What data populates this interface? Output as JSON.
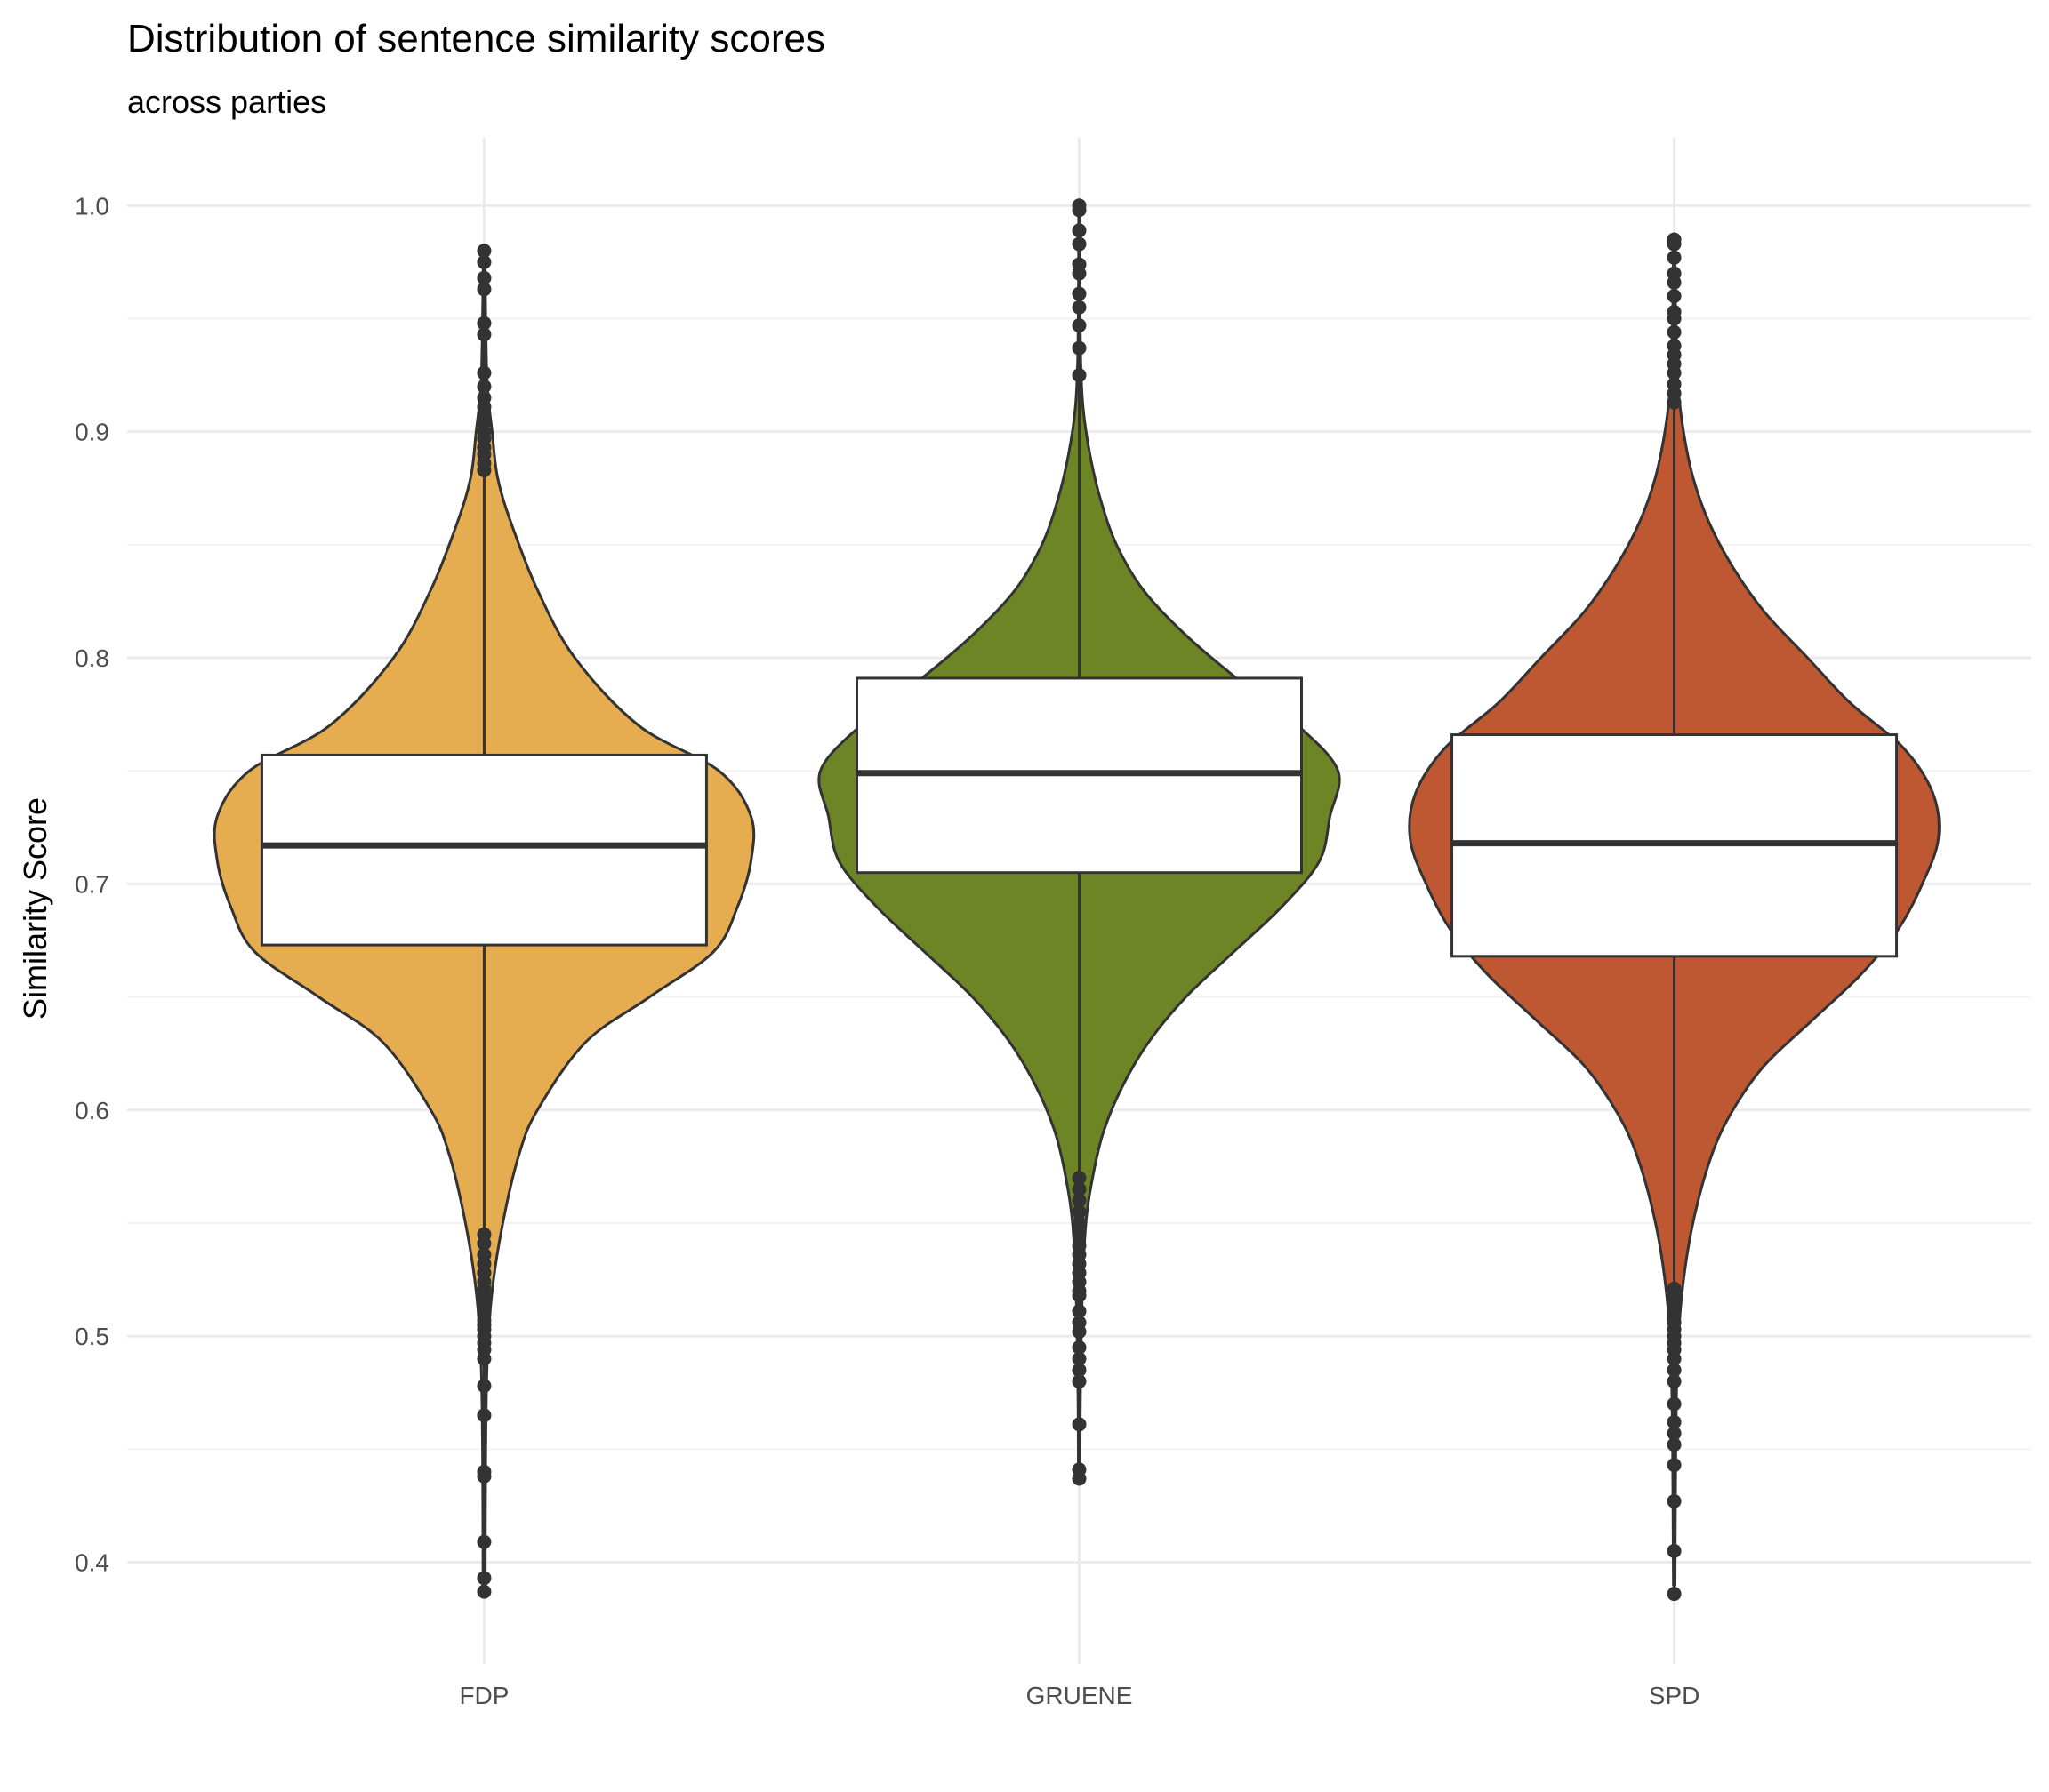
{
  "chart_data": {
    "type": "violin",
    "title": "Distribution of sentence similarity scores",
    "subtitle": "across parties",
    "xlabel": "",
    "ylabel": "Similarity Score",
    "ylim": [
      0.355,
      1.03
    ],
    "y_ticks": [
      "0.4",
      "0.5",
      "0.6",
      "0.7",
      "0.8",
      "0.9",
      "1.0"
    ],
    "grid": true,
    "legend": "none",
    "categories": [
      "FDP",
      "GRUENE",
      "SPD"
    ],
    "series": [
      {
        "category": "FDP",
        "color": "#E5AD50",
        "box": {
          "q1": 0.673,
          "median": 0.717,
          "q3": 0.757
        },
        "whisker_low": 0.387,
        "whisker_high": 0.98,
        "density": [
          [
            0.39,
            0.004
          ],
          [
            0.45,
            0.006
          ],
          [
            0.49,
            0.012
          ],
          [
            0.52,
            0.03
          ],
          [
            0.55,
            0.07
          ],
          [
            0.58,
            0.13
          ],
          [
            0.6,
            0.2
          ],
          [
            0.63,
            0.38
          ],
          [
            0.65,
            0.62
          ],
          [
            0.67,
            0.86
          ],
          [
            0.69,
            0.95
          ],
          [
            0.71,
            1.0
          ],
          [
            0.73,
            1.0
          ],
          [
            0.75,
            0.88
          ],
          [
            0.77,
            0.58
          ],
          [
            0.8,
            0.34
          ],
          [
            0.83,
            0.2
          ],
          [
            0.86,
            0.1
          ],
          [
            0.88,
            0.05
          ],
          [
            0.9,
            0.03
          ],
          [
            0.92,
            0.012
          ],
          [
            0.95,
            0.006
          ],
          [
            0.98,
            0.003
          ]
        ],
        "outliers_low": [
          0.387,
          0.393,
          0.409,
          0.438,
          0.44,
          0.465,
          0.478,
          0.49,
          0.494,
          0.497,
          0.5,
          0.503,
          0.505,
          0.507,
          0.51,
          0.512,
          0.515,
          0.518,
          0.521,
          0.524,
          0.528,
          0.532,
          0.536,
          0.541,
          0.545
        ],
        "outliers_high": [
          0.883,
          0.886,
          0.89,
          0.893,
          0.897,
          0.9,
          0.904,
          0.907,
          0.911,
          0.915,
          0.92,
          0.926,
          0.943,
          0.948,
          0.963,
          0.968,
          0.975,
          0.98
        ]
      },
      {
        "category": "GRUENE",
        "color": "#6E8526",
        "box": {
          "q1": 0.705,
          "median": 0.749,
          "q3": 0.791
        },
        "whisker_low": 0.437,
        "whisker_high": 1.0,
        "density": [
          [
            0.44,
            0.003
          ],
          [
            0.48,
            0.005
          ],
          [
            0.52,
            0.012
          ],
          [
            0.55,
            0.025
          ],
          [
            0.57,
            0.05
          ],
          [
            0.59,
            0.09
          ],
          [
            0.61,
            0.16
          ],
          [
            0.63,
            0.26
          ],
          [
            0.65,
            0.4
          ],
          [
            0.67,
            0.58
          ],
          [
            0.69,
            0.76
          ],
          [
            0.71,
            0.9
          ],
          [
            0.73,
            0.94
          ],
          [
            0.75,
            0.97
          ],
          [
            0.77,
            0.82
          ],
          [
            0.79,
            0.6
          ],
          [
            0.81,
            0.4
          ],
          [
            0.83,
            0.24
          ],
          [
            0.85,
            0.14
          ],
          [
            0.87,
            0.08
          ],
          [
            0.89,
            0.04
          ],
          [
            0.91,
            0.015
          ],
          [
            0.93,
            0.006
          ],
          [
            0.96,
            0.003
          ],
          [
            1.0,
            0.002
          ]
        ],
        "outliers_low": [
          0.437,
          0.441,
          0.461,
          0.48,
          0.485,
          0.49,
          0.495,
          0.502,
          0.506,
          0.511,
          0.518,
          0.52,
          0.524,
          0.528,
          0.532,
          0.536,
          0.54,
          0.545,
          0.55,
          0.555,
          0.56,
          0.565,
          0.57
        ],
        "outliers_high": [
          0.925,
          0.937,
          0.947,
          0.955,
          0.961,
          0.97,
          0.974,
          0.983,
          0.989,
          0.998,
          1.0
        ]
      },
      {
        "category": "SPD",
        "color": "#BE5833",
        "box": {
          "q1": 0.668,
          "median": 0.718,
          "q3": 0.766
        },
        "whisker_low": 0.386,
        "whisker_high": 0.985,
        "density": [
          [
            0.39,
            0.003
          ],
          [
            0.45,
            0.006
          ],
          [
            0.49,
            0.012
          ],
          [
            0.52,
            0.03
          ],
          [
            0.55,
            0.07
          ],
          [
            0.58,
            0.14
          ],
          [
            0.6,
            0.22
          ],
          [
            0.62,
            0.34
          ],
          [
            0.64,
            0.52
          ],
          [
            0.66,
            0.7
          ],
          [
            0.68,
            0.84
          ],
          [
            0.7,
            0.93
          ],
          [
            0.72,
            0.99
          ],
          [
            0.74,
            0.97
          ],
          [
            0.76,
            0.86
          ],
          [
            0.78,
            0.66
          ],
          [
            0.8,
            0.5
          ],
          [
            0.82,
            0.34
          ],
          [
            0.84,
            0.22
          ],
          [
            0.86,
            0.13
          ],
          [
            0.88,
            0.07
          ],
          [
            0.9,
            0.035
          ],
          [
            0.92,
            0.015
          ],
          [
            0.95,
            0.006
          ],
          [
            0.98,
            0.003
          ]
        ],
        "outliers_low": [
          0.386,
          0.405,
          0.427,
          0.443,
          0.452,
          0.457,
          0.462,
          0.47,
          0.48,
          0.485,
          0.49,
          0.494,
          0.497,
          0.5,
          0.503,
          0.506,
          0.509,
          0.512,
          0.515,
          0.518,
          0.521
        ],
        "outliers_high": [
          0.913,
          0.917,
          0.921,
          0.926,
          0.93,
          0.934,
          0.938,
          0.944,
          0.95,
          0.953,
          0.96,
          0.966,
          0.97,
          0.977,
          0.983,
          0.985
        ]
      }
    ]
  }
}
